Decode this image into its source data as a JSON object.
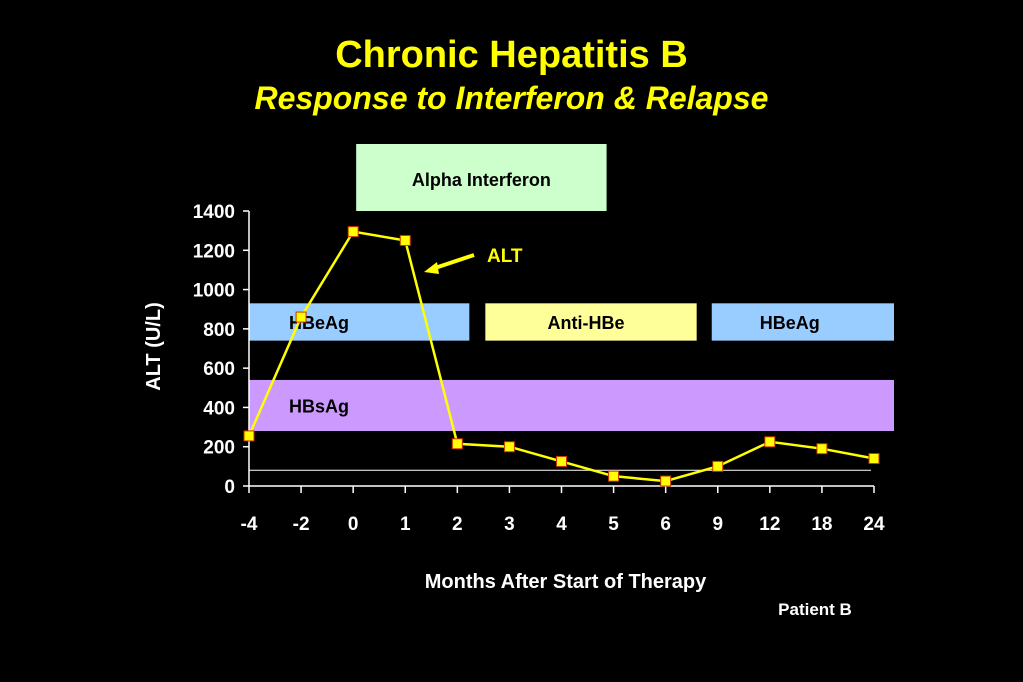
{
  "slide": {
    "title": "Chronic Hepatitis B",
    "subtitle": "Response to Interferon & Relapse",
    "footnote": "Patient B"
  },
  "colors": {
    "background": "#000000",
    "title": "#ffff00",
    "text": "#ffffff",
    "line": "#ffff00",
    "marker_fill": "#ffff00",
    "marker_stroke": "#cc3300",
    "interferon_box": "#ccffcc",
    "hbeag_band": "#99ccff",
    "antihbe_band": "#ffff99",
    "hbsag_band": "#cc99ff",
    "reference_line": "#ffffff"
  },
  "chart_data": {
    "type": "line",
    "categories": [
      "-4",
      "-2",
      "0",
      "1",
      "2",
      "3",
      "4",
      "5",
      "6",
      "9",
      "12",
      "18",
      "24"
    ],
    "series": [
      {
        "name": "ALT",
        "values": [
          255,
          860,
          1295,
          1250,
          215,
          200,
          125,
          50,
          25,
          100,
          225,
          190,
          140
        ]
      }
    ],
    "xlabel": "Months After Start of Therapy",
    "ylabel": "ALT (U/L)",
    "ylim": [
      0,
      1400
    ],
    "yticks": [
      0,
      200,
      400,
      600,
      800,
      1000,
      1200,
      1400
    ],
    "reference_line_value": 80,
    "annotations": {
      "series_label": "ALT",
      "therapy_box": "Alpha Interferon",
      "bands": [
        {
          "label": "HBeAg",
          "key": "hbeag-1",
          "color": "hbeag_band",
          "from": "-4",
          "to": "2",
          "y_from": 740,
          "y_to": 930
        },
        {
          "label": "Anti-HBe",
          "key": "antihbe",
          "color": "antihbe_band",
          "from": "2",
          "to": "6",
          "y_from": 740,
          "y_to": 930
        },
        {
          "label": "HBeAg",
          "key": "hbeag-2",
          "color": "hbeag_band",
          "from": "9",
          "to": "24",
          "y_from": 740,
          "y_to": 930
        },
        {
          "label": "HBsAg",
          "key": "hbsag",
          "color": "hbsag_band",
          "from": "-4",
          "to": "24",
          "y_from": 280,
          "y_to": 540
        }
      ]
    }
  }
}
